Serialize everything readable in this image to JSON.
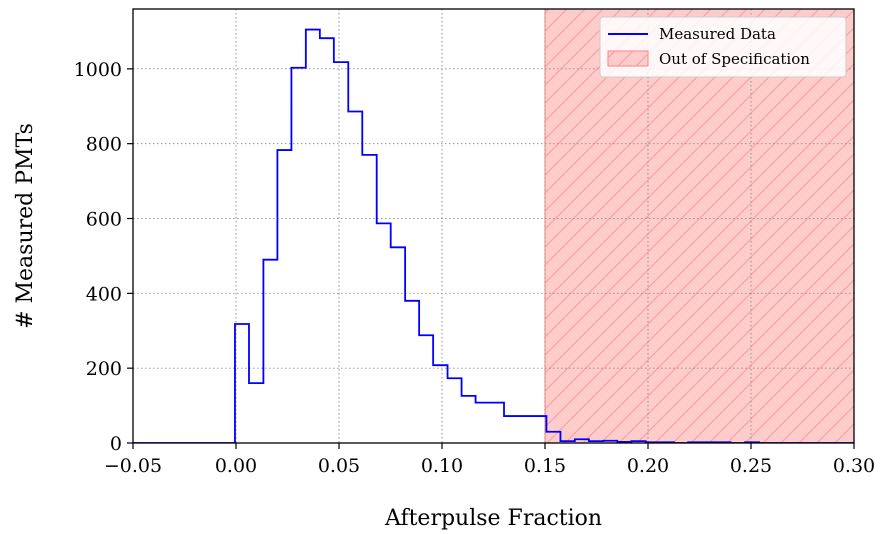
{
  "chart_data": {
    "type": "histogram",
    "title": "",
    "xlabel": "Afterpulse Fraction",
    "ylabel": "# Measured PMTs",
    "xlim": [
      -0.05,
      0.3
    ],
    "ylim": [
      0,
      1160
    ],
    "xticks": [
      -0.05,
      0.0,
      0.05,
      0.1,
      0.15,
      0.2,
      0.25,
      0.3
    ],
    "xtick_labels": [
      "−0.05",
      "0.00",
      "0.05",
      "0.10",
      "0.15",
      "0.20",
      "0.25",
      "0.30"
    ],
    "yticks": [
      0,
      200,
      400,
      600,
      800,
      1000
    ],
    "ytick_labels": [
      "0",
      "200",
      "400",
      "600",
      "800",
      "1000"
    ],
    "grid": true,
    "legend_position": "top-right",
    "series": [
      {
        "name": "Measured Data",
        "color": "#0000ff",
        "step_edges": [
          -0.05,
          -0.0005,
          0.0063,
          0.0133,
          0.0201,
          0.0269,
          0.0339,
          0.0407,
          0.0475,
          0.0545,
          0.0613,
          0.0683,
          0.0751,
          0.0821,
          0.0889,
          0.0957,
          0.1027,
          0.1095,
          0.1163,
          0.1233,
          0.1301,
          0.1439,
          0.1507,
          0.1575,
          0.1645,
          0.1713,
          0.1783,
          0.1851,
          0.1919,
          0.1989,
          0.2057,
          0.2127,
          0.2195,
          0.2263,
          0.2333,
          0.2401,
          0.2471,
          0.2539,
          0.2607,
          0.3
        ],
        "step_values": [
          0,
          318,
          160,
          490,
          783,
          1003,
          1105,
          1082,
          1018,
          886,
          770,
          587,
          523,
          380,
          288,
          208,
          173,
          126,
          108,
          108,
          72,
          72,
          30,
          5,
          10,
          5,
          6,
          3,
          5,
          2,
          2,
          0,
          2,
          2,
          2,
          0,
          2,
          0,
          0
        ]
      }
    ],
    "region": {
      "name": "Out of Specification",
      "x_start": 0.15,
      "x_end": 0.3,
      "fill_color": "#ffcccc",
      "hatch_color": "#f4a3a3",
      "edge_color": "#ff8080"
    }
  }
}
